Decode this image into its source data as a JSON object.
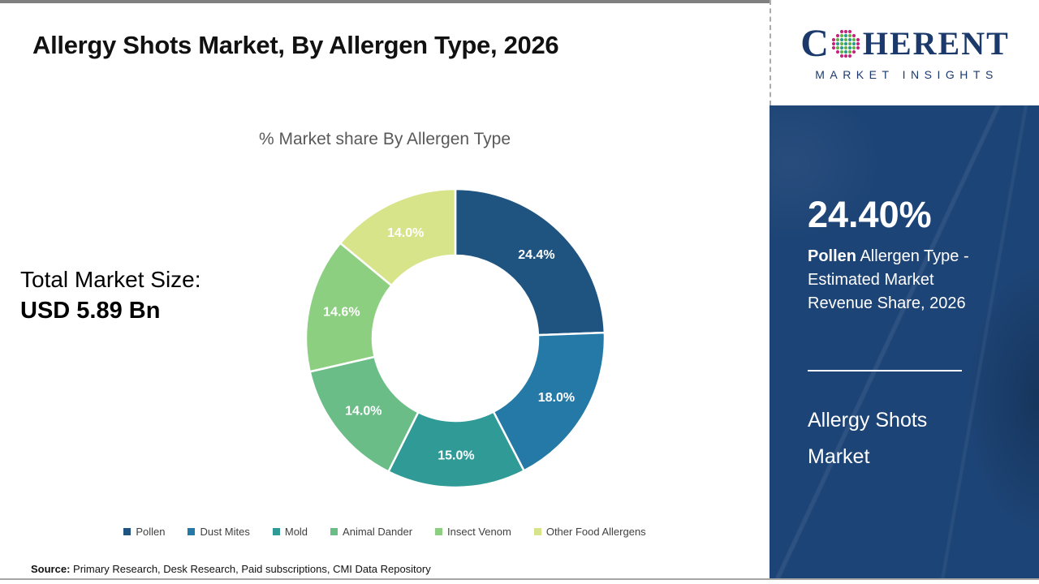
{
  "header": {
    "title": "Allergy Shots Market, By Allergen Type, 2026"
  },
  "chart_data": {
    "type": "pie",
    "subtype": "donut",
    "title": "% Market share By Allergen Type",
    "categories": [
      "Pollen",
      "Dust Mites",
      "Mold",
      "Animal Dander",
      "Insect Venom",
      "Other Food Allergens"
    ],
    "values": [
      24.4,
      18.0,
      15.0,
      14.0,
      14.6,
      14.0
    ],
    "labels": [
      "24.4%",
      "18.0%",
      "15.0%",
      "14.0%",
      "14.6%",
      "14.0%"
    ],
    "colors": [
      "#1f5480",
      "#2579a7",
      "#2f9a96",
      "#6abd87",
      "#8ccf80",
      "#d8e48a"
    ],
    "start_angle_deg": 0,
    "direction": "clockwise",
    "legend_position": "bottom",
    "label_color": "#ffffff"
  },
  "left_panel": {
    "total_label": "Total Market Size:",
    "total_value": "USD 5.89 Bn"
  },
  "source": {
    "label": "Source:",
    "text": " Primary Research, Desk Research, Paid subscriptions, CMI Data Repository"
  },
  "logo": {
    "letter_c": "C",
    "rest": "HERENT",
    "subtitle": "MARKET INSIGHTS",
    "brand_color": "#1b3a6b",
    "globe_dot_colors": [
      "#2a9d8f",
      "#66b245",
      "#c4267f"
    ]
  },
  "highlight_panel": {
    "stat": "24.40%",
    "desc_bold": "Pollen",
    "desc_rest": " Allergen Type - Estimated Market Revenue Share, 2026",
    "footer": "Allergy Shots Market",
    "bg_color": "#1d4476"
  }
}
